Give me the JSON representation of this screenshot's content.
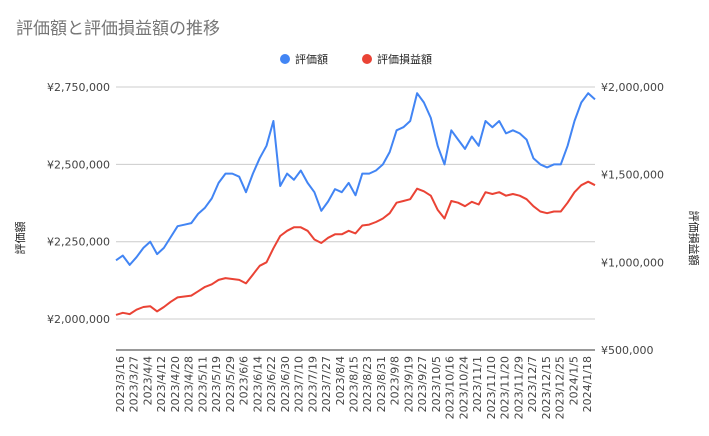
{
  "chart_data": {
    "type": "line",
    "title": "評価額と評価損益額の推移",
    "y_left_label": "評価額",
    "y_right_label": "評価損益額",
    "y_left_ticks": [
      "¥2,000,000",
      "¥2,250,000",
      "¥2,500,000",
      "¥2,750,000"
    ],
    "y_right_ticks": [
      "¥500,000",
      "¥1,000,000",
      "¥1,500,000",
      "¥2,000,000"
    ],
    "y_left_range": [
      1900000,
      2750000
    ],
    "y_right_range": [
      500000,
      2000000
    ],
    "x_tick_labels": [
      "2023/3/16",
      "2023/3/27",
      "2023/4/4",
      "2023/4/12",
      "2023/4/20",
      "2023/4/28",
      "2023/5/11",
      "2023/5/19",
      "2023/5/29",
      "2023/6/6",
      "2023/6/14",
      "2023/6/22",
      "2023/6/30",
      "2023/7/10",
      "2023/7/19",
      "2023/7/27",
      "2023/8/4",
      "2023/8/15",
      "2023/8/23",
      "2023/8/31",
      "2023/9/8",
      "2023/9/19",
      "2023/9/27",
      "2023/10/5",
      "2023/10/16",
      "2023/10/24",
      "2023/11/1",
      "2023/11/10",
      "2023/11/20",
      "2023/11/29",
      "2023/12/7",
      "2023/12/15",
      "2023/12/25",
      "2024/1/5",
      "2024/1/18"
    ],
    "legend_position": "top",
    "grid": true,
    "series": [
      {
        "name": "評価額",
        "color": "#4285F4",
        "axis": "left",
        "values": [
          2190000,
          2205000,
          2175000,
          2200000,
          2230000,
          2250000,
          2210000,
          2230000,
          2265000,
          2300000,
          2305000,
          2310000,
          2340000,
          2360000,
          2390000,
          2440000,
          2470000,
          2470000,
          2460000,
          2410000,
          2470000,
          2520000,
          2560000,
          2640000,
          2430000,
          2470000,
          2450000,
          2480000,
          2440000,
          2410000,
          2350000,
          2380000,
          2420000,
          2410000,
          2440000,
          2400000,
          2470000,
          2470000,
          2480000,
          2500000,
          2540000,
          2610000,
          2620000,
          2640000,
          2730000,
          2700000,
          2650000,
          2560000,
          2500000,
          2610000,
          2580000,
          2550000,
          2590000,
          2560000,
          2640000,
          2620000,
          2640000,
          2600000,
          2610000,
          2600000,
          2580000,
          2520000,
          2500000,
          2490000,
          2500000,
          2500000,
          2560000,
          2640000,
          2700000,
          2730000,
          2710000
        ]
      },
      {
        "name": "評価損益額",
        "color": "#EA4335",
        "axis": "right",
        "values": [
          700000,
          712000,
          705000,
          730000,
          745000,
          750000,
          720000,
          745000,
          775000,
          800000,
          805000,
          810000,
          835000,
          860000,
          875000,
          900000,
          910000,
          905000,
          900000,
          880000,
          930000,
          980000,
          1000000,
          1080000,
          1150000,
          1180000,
          1200000,
          1200000,
          1180000,
          1130000,
          1110000,
          1140000,
          1160000,
          1160000,
          1180000,
          1165000,
          1210000,
          1215000,
          1230000,
          1250000,
          1280000,
          1340000,
          1350000,
          1360000,
          1420000,
          1405000,
          1380000,
          1300000,
          1250000,
          1350000,
          1340000,
          1320000,
          1345000,
          1330000,
          1400000,
          1390000,
          1400000,
          1380000,
          1390000,
          1380000,
          1360000,
          1320000,
          1290000,
          1280000,
          1290000,
          1290000,
          1340000,
          1400000,
          1440000,
          1460000,
          1440000
        ]
      }
    ]
  }
}
